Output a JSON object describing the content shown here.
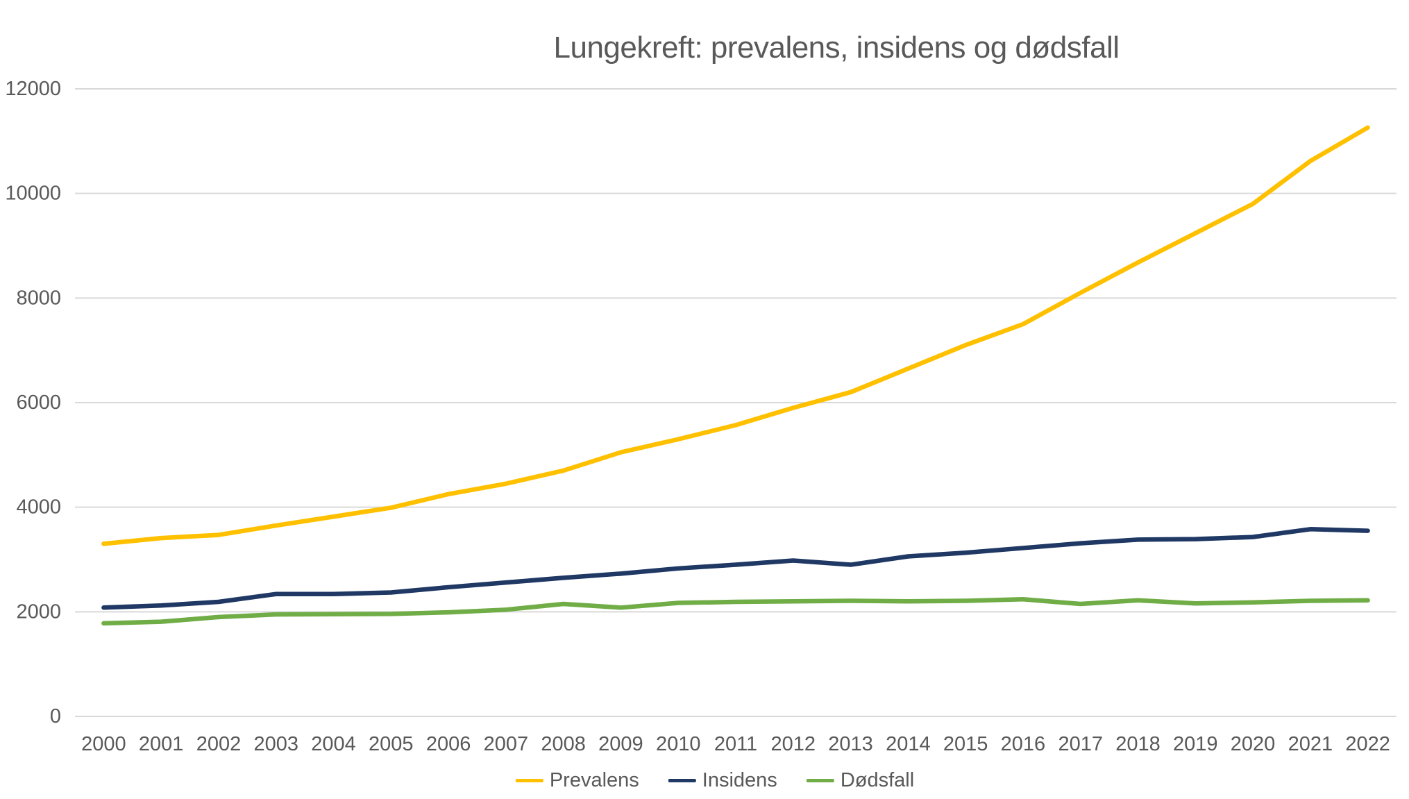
{
  "chart_data": {
    "type": "line",
    "title": "Lungekreft: prevalens, insidens og dødsfall",
    "categories": [
      2000,
      2001,
      2002,
      2003,
      2004,
      2005,
      2006,
      2007,
      2008,
      2009,
      2010,
      2011,
      2012,
      2013,
      2014,
      2015,
      2016,
      2017,
      2018,
      2019,
      2020,
      2021,
      2022
    ],
    "series": [
      {
        "name": "Prevalens",
        "color": "#FFC000",
        "values": [
          3300,
          3410,
          3470,
          3650,
          3820,
          3990,
          4250,
          4450,
          4700,
          5050,
          5300,
          5570,
          5900,
          6200,
          6650,
          7100,
          7500,
          8100,
          8680,
          9240,
          9800,
          10620,
          11260
        ]
      },
      {
        "name": "Insidens",
        "color": "#1F3864",
        "values": [
          2080,
          2120,
          2190,
          2340,
          2340,
          2370,
          2470,
          2560,
          2650,
          2730,
          2830,
          2900,
          2980,
          2900,
          3060,
          3130,
          3220,
          3310,
          3380,
          3390,
          3430,
          3580,
          3550
        ]
      },
      {
        "name": "Dødsfall",
        "color": "#70AD47",
        "values": [
          1780,
          1810,
          1900,
          1950,
          1955,
          1960,
          1990,
          2040,
          2150,
          2080,
          2170,
          2190,
          2200,
          2210,
          2200,
          2210,
          2240,
          2150,
          2220,
          2160,
          2180,
          2210,
          2220
        ]
      }
    ],
    "ylim": [
      0,
      12000
    ],
    "yticks": [
      0,
      2000,
      4000,
      6000,
      8000,
      10000,
      12000
    ],
    "grid": true,
    "legend_position": "bottom",
    "axis_text_color": "#595959",
    "gridline_color": "#D9D9D9"
  }
}
